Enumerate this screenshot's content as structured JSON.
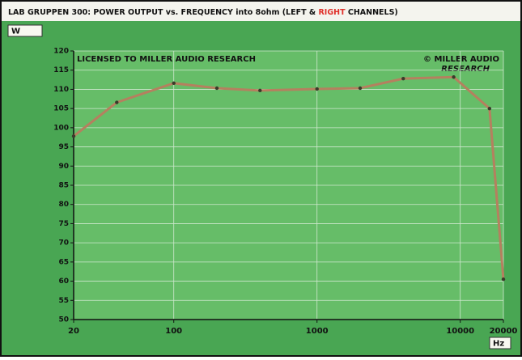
{
  "chart_data": {
    "type": "line",
    "title_parts": [
      "LAB GRUPPEN 300: POWER OUTPUT vs. FREQUENCY into 8ohm (LEFT & ",
      "RIGHT",
      " CHANNELS)"
    ],
    "title_colors": [
      "#111111",
      "#e0302a",
      "#111111"
    ],
    "y_unit": "W",
    "x_unit": "Hz",
    "annotations": [
      "LICENSED TO MILLER AUDIO RESEARCH",
      "© MILLER AUDIO",
      "RESEARCH"
    ],
    "x_scale": "log",
    "xlim": [
      20,
      20000
    ],
    "xticks": [
      20,
      100,
      1000,
      10000,
      20000
    ],
    "ylim": [
      50,
      120
    ],
    "yticks": [
      50,
      55,
      60,
      65,
      70,
      75,
      80,
      85,
      90,
      95,
      100,
      105,
      110,
      115,
      120
    ],
    "grid": true,
    "series": [
      {
        "color": "#b5805f",
        "x": [
          20,
          40,
          100,
          200,
          400,
          1000,
          2000,
          4000,
          9000,
          16000,
          20000
        ],
        "values": [
          97.8,
          106.6,
          111.6,
          110.3,
          109.7,
          110.1,
          110.3,
          112.8,
          113.2,
          105,
          60.5
        ]
      }
    ]
  }
}
